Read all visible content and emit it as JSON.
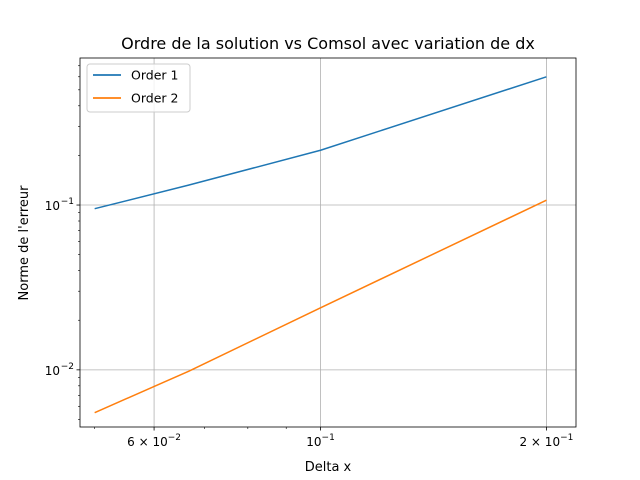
{
  "chart_data": {
    "type": "line",
    "title": "Ordre de la solution vs Comsol avec variation de dx",
    "xlabel": "Delta x",
    "ylabel": "Norme de l'erreur",
    "xscale": "log",
    "yscale": "log",
    "xlim": [
      0.0478,
      0.219
    ],
    "ylim": [
      0.0045,
      0.78
    ],
    "grid": true,
    "legend_position": "top-left",
    "x_ticks": [
      {
        "value": 0.06,
        "base": "6 × 10",
        "exp": "−2"
      },
      {
        "value": 0.1,
        "base": "10",
        "exp": "−1"
      },
      {
        "value": 0.2,
        "base": "2 × 10",
        "exp": "−1"
      }
    ],
    "y_ticks": [
      {
        "value": 0.01,
        "base": "10",
        "exp": "−2"
      },
      {
        "value": 0.1,
        "base": "10",
        "exp": "−1"
      }
    ],
    "series": [
      {
        "name": "Order 1",
        "color": "#1f77b4",
        "x": [
          0.05,
          0.0667,
          0.1,
          0.2
        ],
        "y": [
          0.095,
          0.132,
          0.215,
          0.6
        ]
      },
      {
        "name": "Order 2",
        "color": "#ff7f0e",
        "x": [
          0.05,
          0.0667,
          0.1,
          0.2
        ],
        "y": [
          0.0055,
          0.0098,
          0.0238,
          0.107
        ]
      }
    ]
  }
}
